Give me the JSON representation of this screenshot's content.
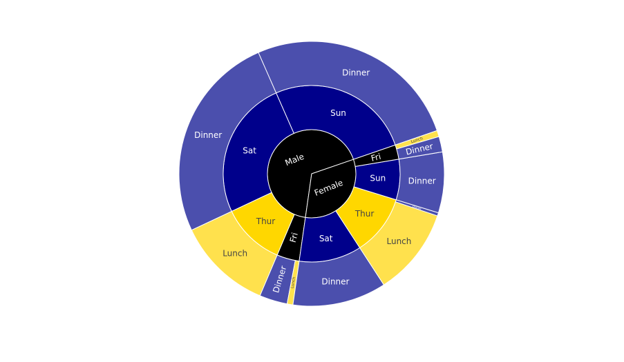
{
  "chart_data": {
    "type": "sunburst",
    "title": "",
    "colors": {
      "ring0": "#000000",
      "Sun": "#00008b",
      "Sat": "#00008b",
      "Thur": "#ffd700",
      "Fri": "#000000",
      "Dinner": "#4b4fad",
      "Lunch": "#ffe14d"
    },
    "total": 4827.77,
    "rings": {
      "sex": [
        {
          "name": "Male",
          "value": 3256.82
        },
        {
          "name": "Female",
          "value": 1570.95
        }
      ],
      "day": [
        {
          "sex": "Male",
          "name": "Sun",
          "value": 1269.46
        },
        {
          "sex": "Male",
          "name": "Sat",
          "value": 1227.35
        },
        {
          "sex": "Male",
          "name": "Thur",
          "value": 561.44
        },
        {
          "sex": "Male",
          "name": "Fri",
          "value": 198.57
        },
        {
          "sex": "Female",
          "name": "Sat",
          "value": 551.05
        },
        {
          "sex": "Female",
          "name": "Thur",
          "value": 534.89
        },
        {
          "sex": "Female",
          "name": "Sun",
          "value": 357.7
        },
        {
          "sex": "Female",
          "name": "Fri",
          "value": 127.31
        }
      ],
      "time": [
        {
          "sex": "Male",
          "day": "Sun",
          "name": "Dinner",
          "value": 1269.46
        },
        {
          "sex": "Male",
          "day": "Sat",
          "name": "Dinner",
          "value": 1227.35
        },
        {
          "sex": "Male",
          "day": "Thur",
          "name": "Lunch",
          "value": 561.44
        },
        {
          "sex": "Male",
          "day": "Fri",
          "name": "Dinner",
          "value": 164.41
        },
        {
          "sex": "Male",
          "day": "Fri",
          "name": "Lunch",
          "value": 34.16
        },
        {
          "sex": "Female",
          "day": "Sat",
          "name": "Dinner",
          "value": 551.05
        },
        {
          "sex": "Female",
          "day": "Thur",
          "name": "Lunch",
          "value": 516.11
        },
        {
          "sex": "Female",
          "day": "Thur",
          "name": "Dinner",
          "value": 18.78
        },
        {
          "sex": "Female",
          "day": "Sun",
          "name": "Dinner",
          "value": 357.7
        },
        {
          "sex": "Female",
          "day": "Fri",
          "name": "Dinner",
          "value": 91.28
        },
        {
          "sex": "Female",
          "day": "Fri",
          "name": "Lunch",
          "value": 36.03
        }
      ]
    }
  }
}
